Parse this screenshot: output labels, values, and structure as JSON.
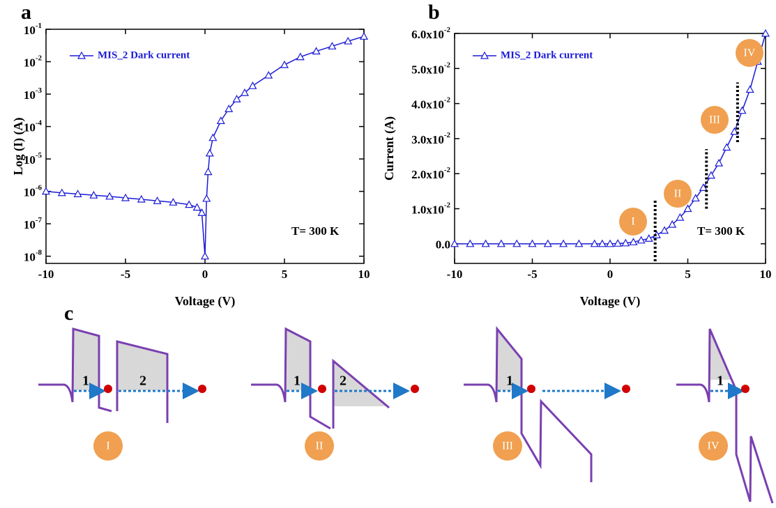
{
  "chart_data": [
    {
      "type": "line",
      "panel": "a",
      "x_label": "Voltage (V)",
      "y_label": "Log (I) (A)",
      "log_y": true,
      "xlim": [
        -10,
        10
      ],
      "xticks": [
        -10,
        -5,
        0,
        5,
        10
      ],
      "ylim": [
        6e-09,
        0.1
      ],
      "yticks": [
        {
          "value": 1e-08,
          "label": [
            "10",
            "-8"
          ]
        },
        {
          "value": 1e-07,
          "label": [
            "10",
            "-7"
          ]
        },
        {
          "value": 1e-06,
          "label": [
            "10",
            "-6"
          ]
        },
        {
          "value": 1e-05,
          "label": [
            "10",
            "-5"
          ]
        },
        {
          "value": 0.0001,
          "label": [
            "10",
            "-4"
          ]
        },
        {
          "value": 0.001,
          "label": [
            "10",
            "-3"
          ]
        },
        {
          "value": 0.01,
          "label": [
            "10",
            "-2"
          ]
        },
        {
          "value": 0.1,
          "label": [
            "10",
            "-1"
          ]
        }
      ],
      "x": [
        -10,
        -9,
        -8,
        -7,
        -6,
        -5,
        -4,
        -3,
        -2,
        -1,
        -0.5,
        -0.2,
        0,
        0.1,
        0.2,
        0.3,
        0.5,
        1,
        1.5,
        2,
        2.5,
        3,
        4,
        5,
        6,
        7,
        8,
        9,
        10
      ],
      "series": [
        {
          "name": "MIS_2 Dark current",
          "color": "#1a1ad6",
          "values": [
            1e-06,
            9e-07,
            8.3e-07,
            7.6e-07,
            7e-07,
            6.3e-07,
            5.7e-07,
            5.1e-07,
            4.6e-07,
            3.9e-07,
            3.2e-07,
            2.2e-07,
            1e-08,
            6e-07,
            4e-06,
            1.5e-05,
            4.5e-05,
            0.00015,
            0.00035,
            0.0007,
            0.0011,
            0.0018,
            0.0038,
            0.008,
            0.014,
            0.021,
            0.03,
            0.043,
            0.06
          ]
        }
      ],
      "legend": "upper left",
      "annotation": "T= 300 K"
    },
    {
      "type": "line",
      "panel": "b",
      "x_label": "Voltage (V)",
      "y_label": "Current (A)",
      "log_y": false,
      "xlim": [
        -10,
        10
      ],
      "xticks": [
        -10,
        -5,
        0,
        5,
        10
      ],
      "ylim": [
        -0.0056,
        0.06
      ],
      "yticks": [
        {
          "value": 0,
          "label": "0.0"
        },
        {
          "value": 0.01,
          "label": [
            "1.0x10",
            "-2"
          ]
        },
        {
          "value": 0.02,
          "label": [
            "2.0x10",
            "-2"
          ]
        },
        {
          "value": 0.03,
          "label": [
            "3.0x10",
            "-2"
          ]
        },
        {
          "value": 0.04,
          "label": [
            "4.0x10",
            "-2"
          ]
        },
        {
          "value": 0.05,
          "label": [
            "5.0x10",
            "-2"
          ]
        },
        {
          "value": 0.06,
          "label": [
            "6.0x10",
            "-2"
          ]
        }
      ],
      "x": [
        -10,
        -9,
        -8,
        -7,
        -6,
        -5,
        -4,
        -3,
        -2,
        -1,
        -0.5,
        0,
        0.5,
        1,
        1.5,
        2,
        2.5,
        3,
        3.5,
        4,
        4.5,
        5,
        5.5,
        6,
        6.5,
        7,
        7.5,
        8,
        8.5,
        9,
        9.5,
        10
      ],
      "series": [
        {
          "name": "MIS_2 Dark current",
          "color": "#1a1ad6",
          "values": [
            0,
            0,
            0,
            0,
            0,
            0,
            0,
            0,
            0,
            0,
            0,
            0,
            0.0001,
            0.0002,
            0.0005,
            0.001,
            0.0015,
            0.0025,
            0.0038,
            0.0055,
            0.0075,
            0.01,
            0.013,
            0.016,
            0.0195,
            0.023,
            0.0275,
            0.032,
            0.038,
            0.044,
            0.052,
            0.06
          ]
        }
      ],
      "legend": "upper left",
      "annotation": "T= 300 K",
      "regions": [
        "I",
        "II",
        "III",
        "IV"
      ],
      "dividers": [
        {
          "x": 2.9,
          "y": [
            -0.005,
            0.0125
          ]
        },
        {
          "x": 6.2,
          "y": [
            0.01,
            0.027
          ]
        },
        {
          "x": 8.2,
          "y": [
            0.029,
            0.046
          ]
        }
      ]
    }
  ],
  "diagram": {
    "panel": "c",
    "cases": [
      {
        "label": "I",
        "barriers": [
          "1",
          "2"
        ]
      },
      {
        "label": "II",
        "barriers": [
          "1",
          "2"
        ]
      },
      {
        "label": "III",
        "barriers": [
          "1"
        ]
      },
      {
        "label": "IV",
        "barriers": [
          "1"
        ]
      }
    ]
  }
}
